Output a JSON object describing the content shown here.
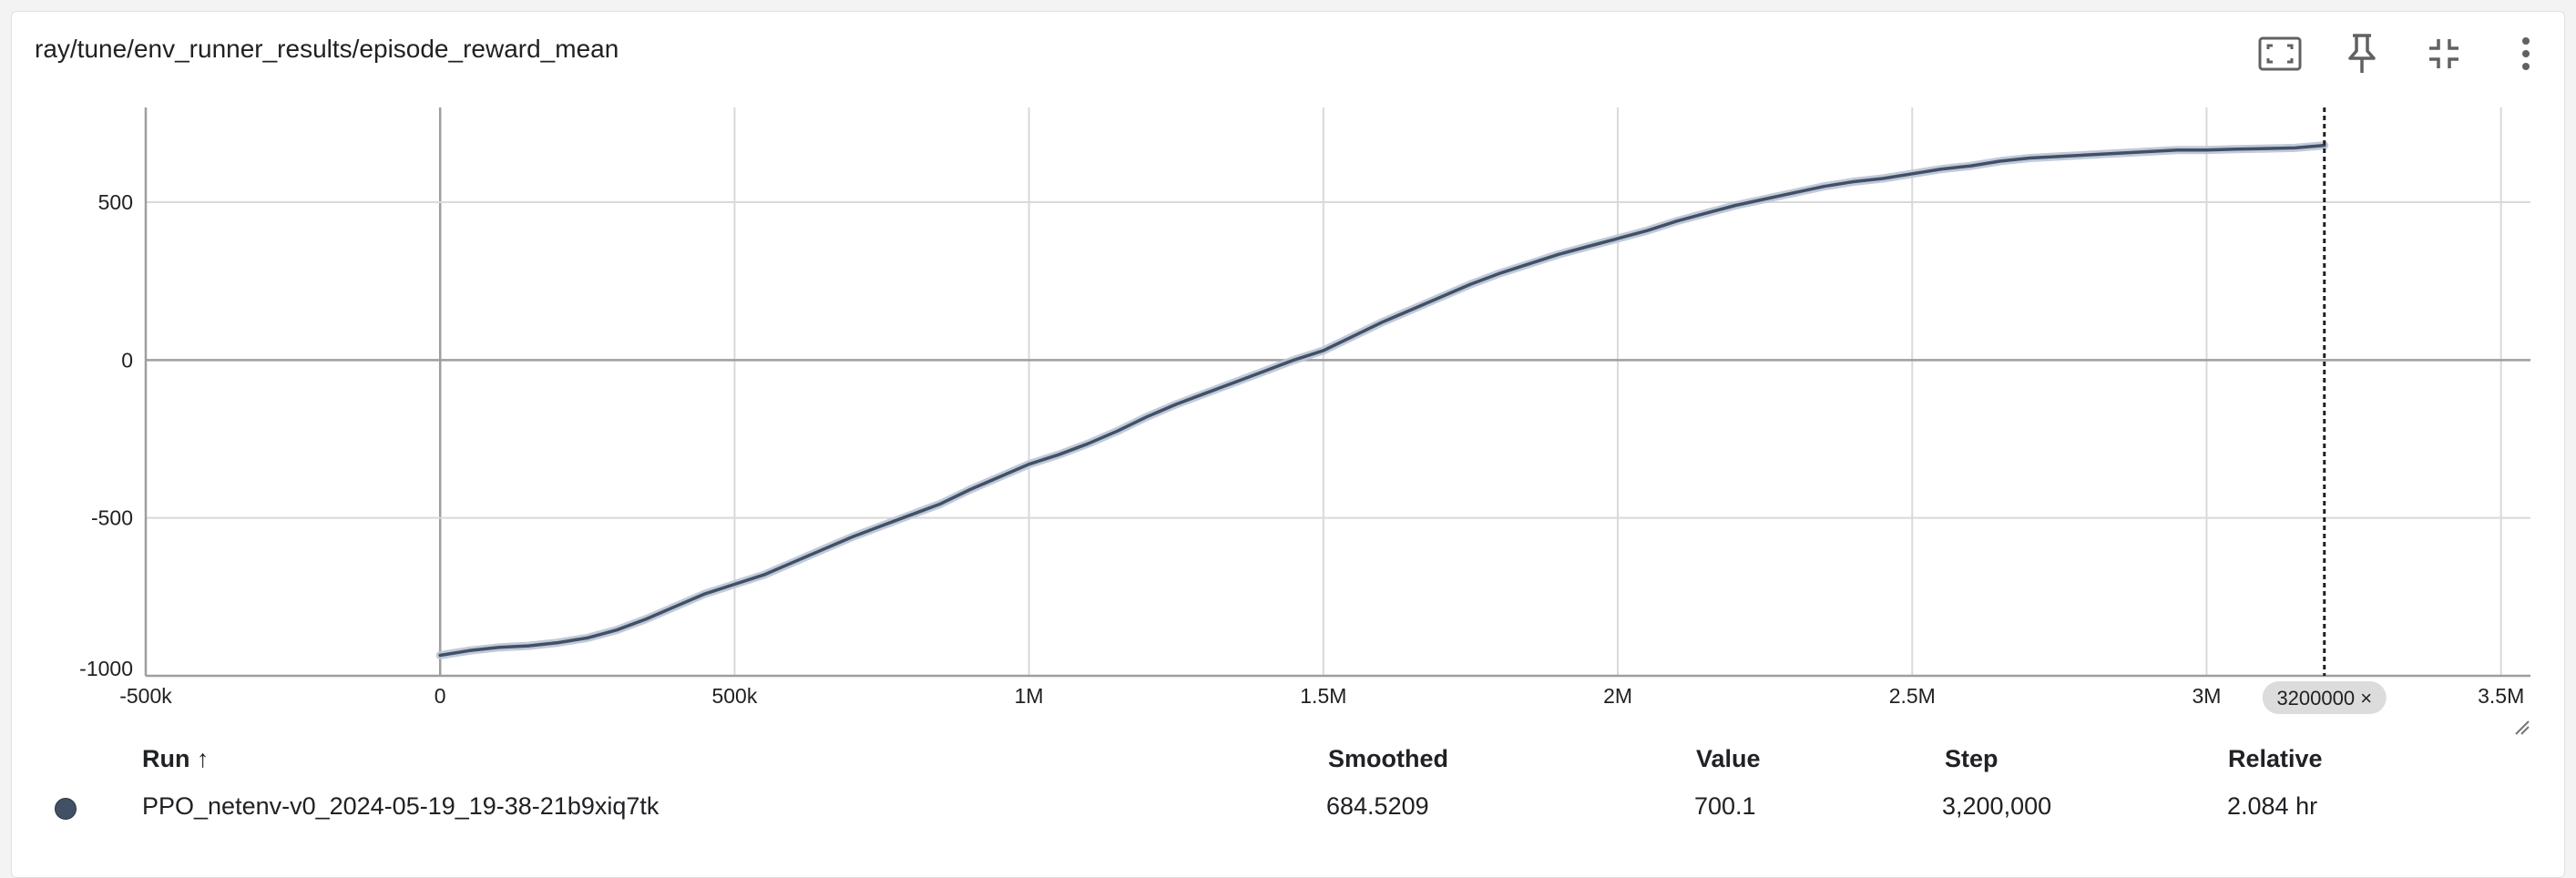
{
  "card": {
    "title": "ray/tune/env_runner_results/episode_reward_mean",
    "toolbar": [
      {
        "icon": "fit-to-data-icon"
      },
      {
        "icon": "pin-icon"
      },
      {
        "icon": "collapse-icon"
      },
      {
        "icon": "more-vert-icon"
      }
    ]
  },
  "chart_data": {
    "type": "line",
    "title": "",
    "xlabel": "",
    "ylabel": "",
    "xlim": [
      -500000,
      3550000
    ],
    "ylim": [
      -1000,
      800
    ],
    "x_ticks": [
      {
        "v": -500000,
        "label": "-500k"
      },
      {
        "v": 0,
        "label": "0"
      },
      {
        "v": 500000,
        "label": "500k"
      },
      {
        "v": 1000000,
        "label": "1M"
      },
      {
        "v": 1500000,
        "label": "1.5M"
      },
      {
        "v": 2000000,
        "label": "2M"
      },
      {
        "v": 2500000,
        "label": "2.5M"
      },
      {
        "v": 3000000,
        "label": "3M"
      },
      {
        "v": 3500000,
        "label": "3.5M"
      }
    ],
    "y_ticks": [
      {
        "v": -1000,
        "label": "-1000"
      },
      {
        "v": -500,
        "label": "-500"
      },
      {
        "v": 0,
        "label": "0"
      },
      {
        "v": 500,
        "label": "500"
      }
    ],
    "grid": true,
    "cursor_step": 3200000,
    "cursor_label": "3200000 ×",
    "series": [
      {
        "name": "PPO_netenv-v0_2024-05-19_19-38-21b9xiq7tk",
        "color": "#425066",
        "raw_color": "#b9c4d6",
        "x": [
          0,
          50000,
          100000,
          150000,
          200000,
          250000,
          300000,
          350000,
          400000,
          450000,
          500000,
          550000,
          600000,
          650000,
          700000,
          750000,
          800000,
          850000,
          900000,
          950000,
          1000000,
          1050000,
          1100000,
          1150000,
          1200000,
          1250000,
          1300000,
          1350000,
          1400000,
          1450000,
          1500000,
          1550000,
          1600000,
          1650000,
          1700000,
          1750000,
          1800000,
          1850000,
          1900000,
          1950000,
          2000000,
          2050000,
          2100000,
          2150000,
          2200000,
          2250000,
          2300000,
          2350000,
          2400000,
          2450000,
          2500000,
          2550000,
          2600000,
          2650000,
          2700000,
          2750000,
          2800000,
          2850000,
          2900000,
          2950000,
          3000000,
          3050000,
          3100000,
          3150000,
          3200000
        ],
        "values": [
          -935,
          -920,
          -910,
          -905,
          -895,
          -880,
          -855,
          -820,
          -780,
          -740,
          -710,
          -680,
          -640,
          -600,
          -560,
          -525,
          -490,
          -455,
          -410,
          -370,
          -330,
          -300,
          -265,
          -225,
          -180,
          -140,
          -105,
          -70,
          -35,
          0,
          30,
          75,
          120,
          160,
          200,
          240,
          275,
          305,
          335,
          360,
          385,
          410,
          440,
          465,
          490,
          510,
          530,
          550,
          565,
          575,
          590,
          605,
          615,
          630,
          640,
          645,
          650,
          655,
          660,
          665,
          665,
          668,
          670,
          672,
          680
        ]
      }
    ]
  },
  "table": {
    "headers": {
      "run": "Run ↑",
      "smoothed": "Smoothed",
      "value": "Value",
      "step": "Step",
      "relative": "Relative"
    },
    "rows": [
      {
        "run": "PPO_netenv-v0_2024-05-19_19-38-21b9xiq7tk",
        "smoothed": "684.5209",
        "value": "700.1",
        "step": "3,200,000",
        "relative": "2.084 hr",
        "color": "#425066"
      }
    ]
  }
}
